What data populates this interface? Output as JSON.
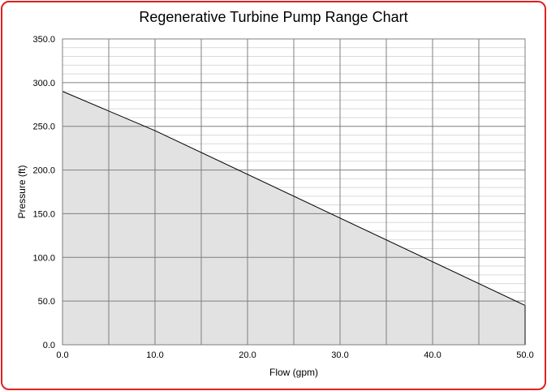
{
  "chart_data": {
    "type": "area",
    "title": "Regenerative Turbine Pump Range Chart",
    "xlabel": "Flow (gpm)",
    "ylabel": "Pressure (ft)",
    "xlim": [
      0,
      50
    ],
    "ylim": [
      0,
      350
    ],
    "x_major_ticks": [
      0,
      5,
      10,
      15,
      20,
      25,
      30,
      35,
      40,
      45,
      50
    ],
    "x_tick_labels": [
      "0.0",
      "10.0",
      "20.0",
      "30.0",
      "40.0",
      "50.0"
    ],
    "x_tick_label_values": [
      0,
      10,
      20,
      30,
      40,
      50
    ],
    "y_major_ticks": [
      0,
      50,
      100,
      150,
      200,
      250,
      300,
      350
    ],
    "y_tick_labels": [
      "0.0",
      "50.0",
      "100.0",
      "150.0",
      "200.0",
      "250.0",
      "300.0",
      "350.0"
    ],
    "y_minor_step": 10,
    "grid": true,
    "series": [
      {
        "x": [
          0,
          10,
          50
        ],
        "y": [
          290,
          245,
          45
        ]
      }
    ],
    "colors": {
      "fill": "#e2e2e2",
      "line": "#000000",
      "frame": "#e02020",
      "major_grid": "#7f7f7f",
      "minor_grid": "#d9d9d9"
    }
  }
}
